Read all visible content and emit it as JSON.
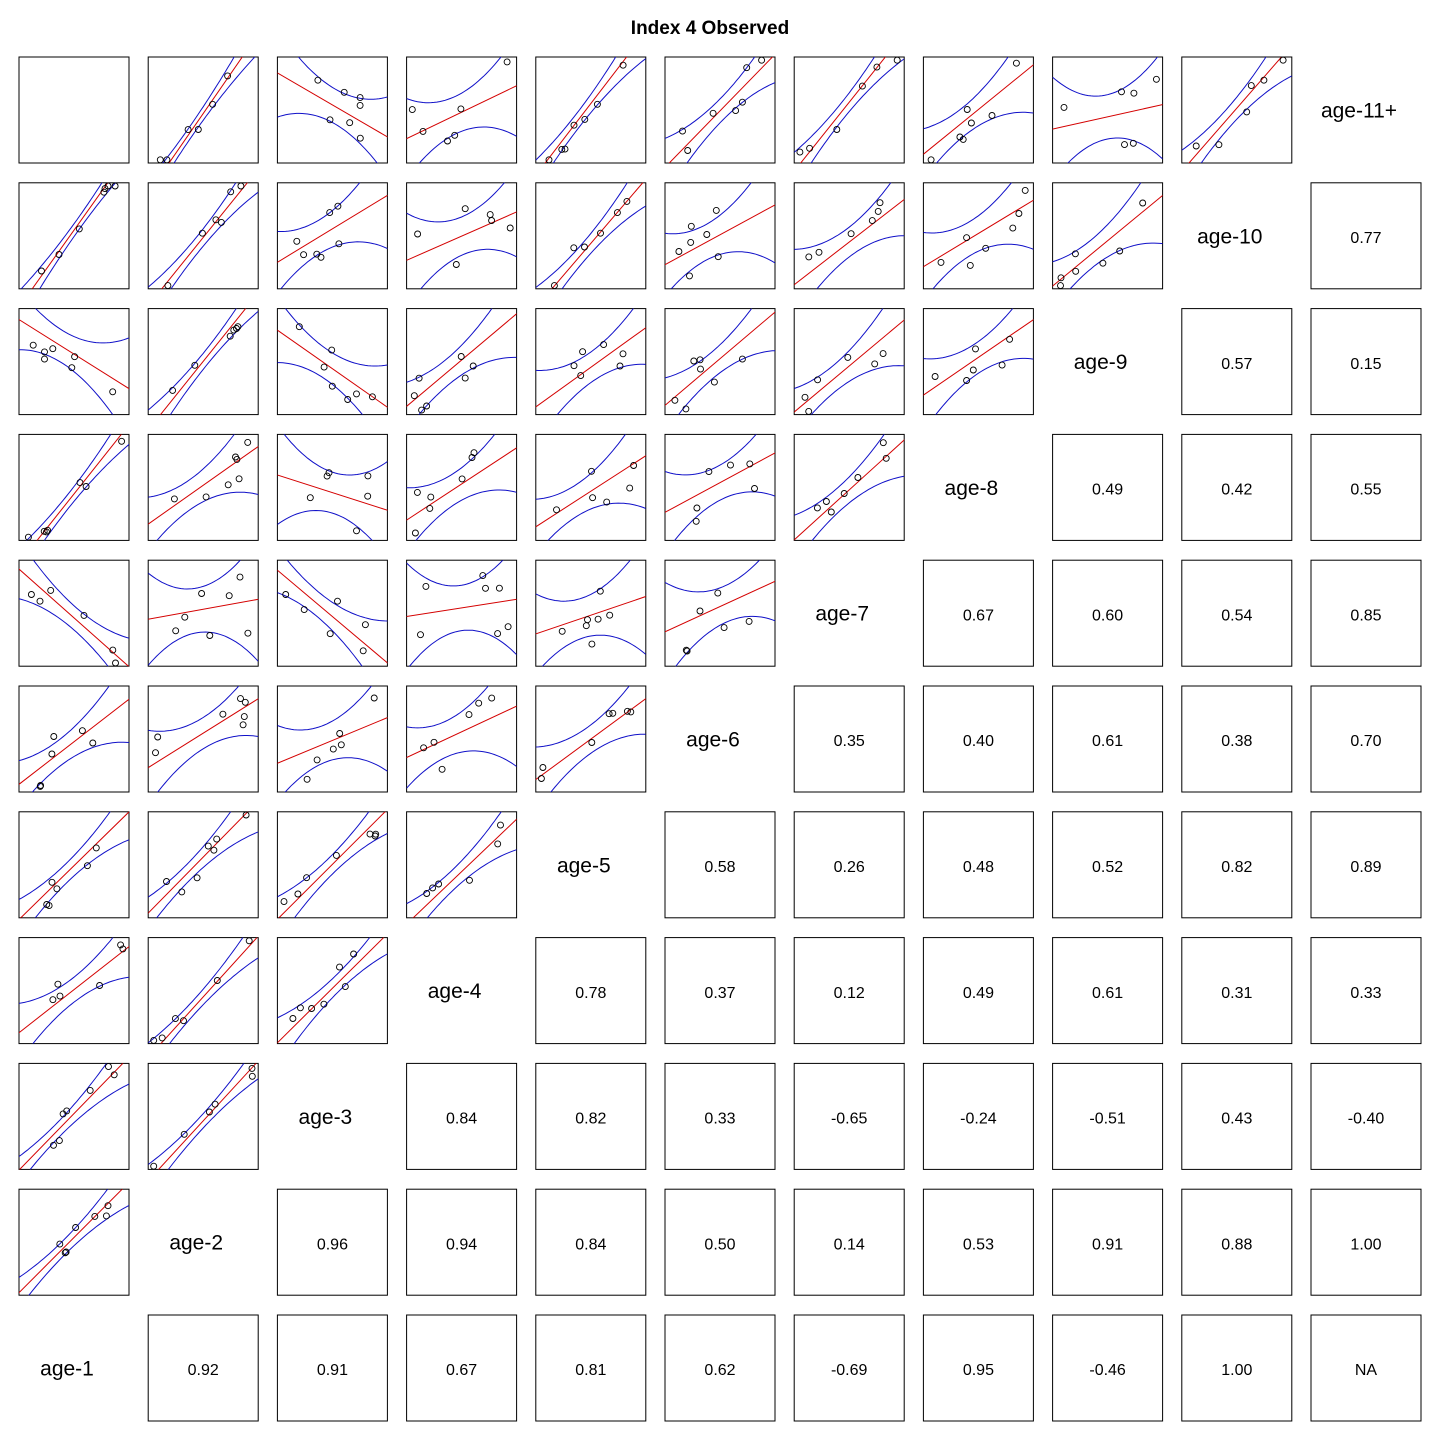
{
  "title": "Index 4 Observed",
  "chart_data": {
    "type": "scatter-matrix",
    "title": "Index 4 Observed",
    "variables": [
      "age-1",
      "age-2",
      "age-3",
      "age-4",
      "age-5",
      "age-6",
      "age-7",
      "age-8",
      "age-9",
      "age-10",
      "age-11+"
    ],
    "correlation_labels": [
      [
        null,
        "0.92",
        "0.91",
        "0.67",
        "0.81",
        "0.62",
        "-0.69",
        "0.95",
        "-0.46",
        "1.00",
        "NA"
      ],
      [
        null,
        null,
        "0.96",
        "0.94",
        "0.84",
        "0.50",
        "0.14",
        "0.53",
        "0.91",
        "0.88",
        "1.00"
      ],
      [
        null,
        null,
        null,
        "0.84",
        "0.82",
        "0.33",
        "-0.65",
        "-0.24",
        "-0.51",
        "0.43",
        "-0.40"
      ],
      [
        null,
        null,
        null,
        null,
        "0.78",
        "0.37",
        "0.12",
        "0.49",
        "0.61",
        "0.31",
        "0.33"
      ],
      [
        null,
        null,
        null,
        null,
        null,
        "0.58",
        "0.26",
        "0.48",
        "0.52",
        "0.82",
        "0.89"
      ],
      [
        null,
        null,
        null,
        null,
        null,
        null,
        "0.35",
        "0.40",
        "0.61",
        "0.38",
        "0.70"
      ],
      [
        null,
        null,
        null,
        null,
        null,
        null,
        null,
        "0.67",
        "0.60",
        "0.54",
        "0.85"
      ],
      [
        null,
        null,
        null,
        null,
        null,
        null,
        null,
        null,
        "0.49",
        "0.42",
        "0.55"
      ],
      [
        null,
        null,
        null,
        null,
        null,
        null,
        null,
        null,
        null,
        "0.57",
        "0.15"
      ],
      [
        null,
        null,
        null,
        null,
        null,
        null,
        null,
        null,
        null,
        null,
        "0.77"
      ],
      [
        null,
        null,
        null,
        null,
        null,
        null,
        null,
        null,
        null,
        null,
        null
      ]
    ],
    "lower_panels": "scatter with linear regression fit (red) and confidence band (blue)",
    "colors": {
      "points": "#000000",
      "fit": "#d40000",
      "band": "#1010c8"
    }
  }
}
